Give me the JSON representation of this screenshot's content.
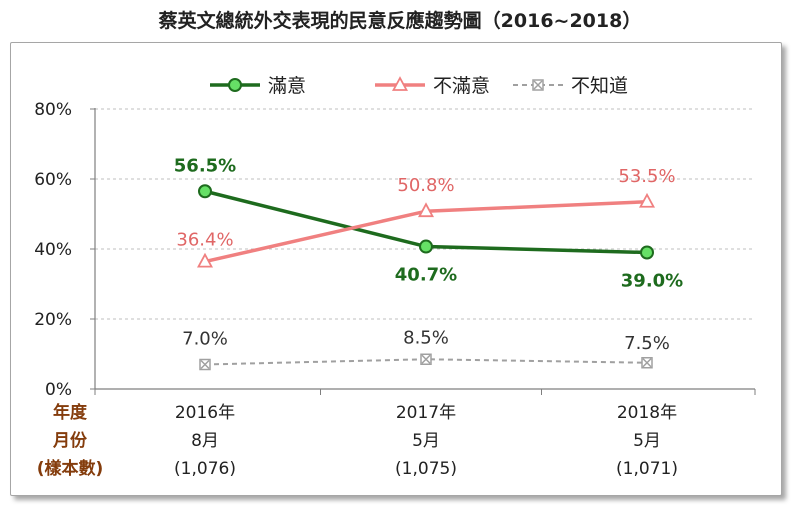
{
  "chart_data": {
    "type": "line",
    "title": "蔡英文總統外交表現的民意反應趨勢圖（2016~2018）",
    "categories": [
      "2016年",
      "2017年",
      "2018年"
    ],
    "months": [
      "8月",
      "5月",
      "5月"
    ],
    "samples": [
      "(1,076)",
      "(1,075)",
      "(1,071)"
    ],
    "row_labels": {
      "year": "年度",
      "month": "月份",
      "sample": "(樣本數)"
    },
    "ylim": [
      0,
      80
    ],
    "yticks": [
      0,
      20,
      40,
      60,
      80
    ],
    "ytick_labels": [
      "0%",
      "20%",
      "40%",
      "60%",
      "80%"
    ],
    "grid": true,
    "legend_position": "top",
    "series": [
      {
        "name": "滿意",
        "values": [
          56.5,
          40.7,
          39.0
        ],
        "labels": [
          "56.5%",
          "40.7%",
          "39.0%"
        ],
        "color": "#1e6b1e",
        "marker_fill": "#66e066",
        "marker": "circle",
        "style": "solid"
      },
      {
        "name": "不滿意",
        "values": [
          36.4,
          50.8,
          53.5
        ],
        "labels": [
          "36.4%",
          "50.8%",
          "53.5%"
        ],
        "color": "#f08080",
        "marker_fill": "#ffffff",
        "marker": "triangle",
        "style": "solid"
      },
      {
        "name": "不知道",
        "values": [
          7.0,
          8.5,
          7.5
        ],
        "labels": [
          "7.0%",
          "8.5%",
          "7.5%"
        ],
        "color": "#a0a0a0",
        "marker_fill": "#ffffff",
        "marker": "x-square",
        "style": "dashed"
      }
    ]
  }
}
